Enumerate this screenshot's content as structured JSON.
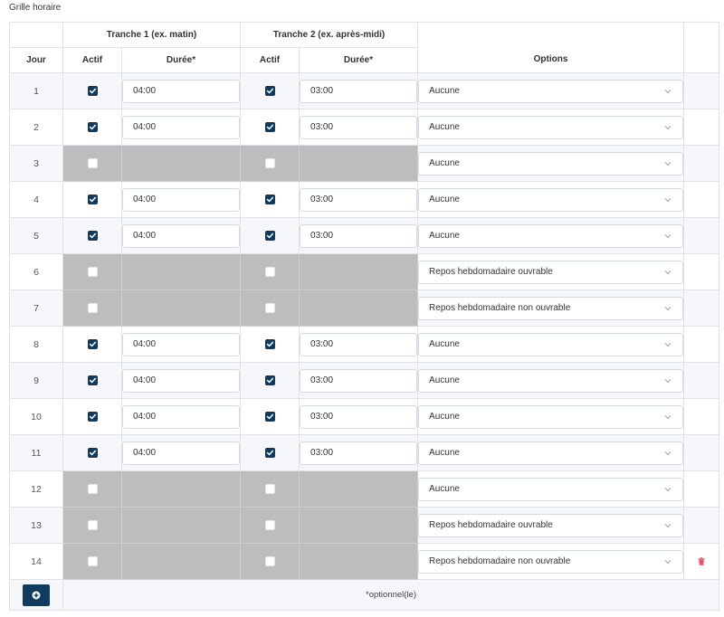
{
  "title": "Grille horaire",
  "headers": {
    "jour": "Jour",
    "tranche1": "Tranche 1 (ex. matin)",
    "tranche2": "Tranche 2 (ex. après-midi)",
    "actif": "Actif",
    "duree": "Durée*",
    "options": "Options"
  },
  "rows": [
    {
      "jour": "1",
      "t1_active": true,
      "t1_duration": "04:00",
      "t2_active": true,
      "t2_duration": "03:00",
      "option": "Aucune"
    },
    {
      "jour": "2",
      "t1_active": true,
      "t1_duration": "04:00",
      "t2_active": true,
      "t2_duration": "03:00",
      "option": "Aucune"
    },
    {
      "jour": "3",
      "t1_active": false,
      "t1_duration": "",
      "t2_active": false,
      "t2_duration": "",
      "option": "Aucune"
    },
    {
      "jour": "4",
      "t1_active": true,
      "t1_duration": "04:00",
      "t2_active": true,
      "t2_duration": "03:00",
      "option": "Aucune"
    },
    {
      "jour": "5",
      "t1_active": true,
      "t1_duration": "04:00",
      "t2_active": true,
      "t2_duration": "03:00",
      "option": "Aucune"
    },
    {
      "jour": "6",
      "t1_active": false,
      "t1_duration": "",
      "t2_active": false,
      "t2_duration": "",
      "option": "Repos hebdomadaire ouvrable"
    },
    {
      "jour": "7",
      "t1_active": false,
      "t1_duration": "",
      "t2_active": false,
      "t2_duration": "",
      "option": "Repos hebdomadaire non ouvrable"
    },
    {
      "jour": "8",
      "t1_active": true,
      "t1_duration": "04:00",
      "t2_active": true,
      "t2_duration": "03:00",
      "option": "Aucune"
    },
    {
      "jour": "9",
      "t1_active": true,
      "t1_duration": "04:00",
      "t2_active": true,
      "t2_duration": "03:00",
      "option": "Aucune"
    },
    {
      "jour": "10",
      "t1_active": true,
      "t1_duration": "04:00",
      "t2_active": true,
      "t2_duration": "03:00",
      "option": "Aucune"
    },
    {
      "jour": "11",
      "t1_active": true,
      "t1_duration": "04:00",
      "t2_active": true,
      "t2_duration": "03:00",
      "option": "Aucune"
    },
    {
      "jour": "12",
      "t1_active": false,
      "t1_duration": "",
      "t2_active": false,
      "t2_duration": "",
      "option": "Aucune"
    },
    {
      "jour": "13",
      "t1_active": false,
      "t1_duration": "",
      "t2_active": false,
      "t2_duration": "",
      "option": "Repos hebdomadaire ouvrable"
    },
    {
      "jour": "14",
      "t1_active": false,
      "t1_duration": "",
      "t2_active": false,
      "t2_duration": "",
      "option": "Repos hebdomadaire non ouvrable",
      "deletable": true
    }
  ],
  "footer": {
    "note": "*optionnel(le)",
    "add_icon": "plus-icon"
  },
  "icons": {
    "checkbox": "checkbox-checked-icon",
    "chevron": "chevron-down-icon",
    "delete": "trash-icon"
  },
  "colors": {
    "accent": "#0e3b5e",
    "disabled_cell": "#bdbdbd",
    "delete": "#e8506b"
  }
}
